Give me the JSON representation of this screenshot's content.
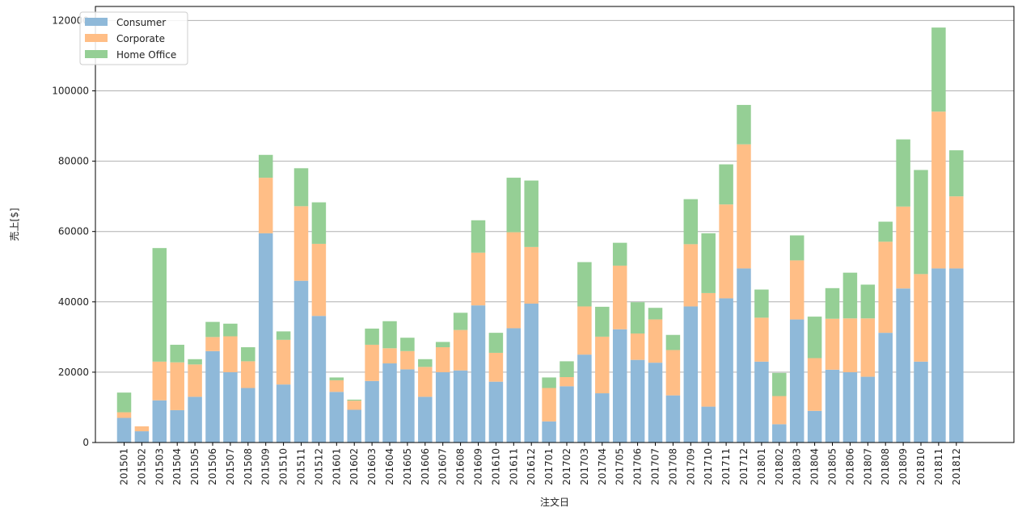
{
  "chart_data": {
    "type": "bar",
    "stacked": true,
    "xlabel": "注文日",
    "ylabel": "売上[$]",
    "ylim": [
      0,
      124000
    ],
    "yticks": [
      0,
      20000,
      40000,
      60000,
      80000,
      100000,
      120000
    ],
    "grid": "y",
    "legend_position": "top-left",
    "categories": [
      "201501",
      "201502",
      "201503",
      "201504",
      "201505",
      "201506",
      "201507",
      "201508",
      "201509",
      "201510",
      "201511",
      "201512",
      "201601",
      "201602",
      "201603",
      "201604",
      "201605",
      "201606",
      "201607",
      "201608",
      "201609",
      "201610",
      "201611",
      "201612",
      "201701",
      "201702",
      "201703",
      "201704",
      "201705",
      "201706",
      "201707",
      "201708",
      "201709",
      "201710",
      "201711",
      "201712",
      "201801",
      "201802",
      "201803",
      "201804",
      "201805",
      "201806",
      "201807",
      "201808",
      "201809",
      "201810",
      "201811",
      "201812"
    ],
    "series": [
      {
        "name": "Consumer",
        "color": "#8fb9d9",
        "values": [
          7000,
          3200,
          12000,
          9200,
          13000,
          26000,
          20000,
          15500,
          59500,
          16500,
          46000,
          36000,
          14400,
          9300,
          17500,
          22500,
          20800,
          13000,
          20000,
          20500,
          39000,
          17300,
          32500,
          39500,
          6000,
          16000,
          25000,
          14000,
          32200,
          23500,
          22700,
          13400,
          38700,
          10200,
          41000,
          49500,
          23000,
          5200,
          35000,
          9000,
          20700,
          20000,
          18700,
          31200,
          43800,
          23000,
          49500,
          49500
        ]
      },
      {
        "name": "Corporate",
        "color": "#ffbe86",
        "values": [
          1600,
          1400,
          11000,
          13600,
          9200,
          4000,
          10200,
          7600,
          15800,
          12700,
          21200,
          20500,
          3300,
          2600,
          10300,
          4300,
          5200,
          8500,
          7100,
          11500,
          15000,
          8200,
          27300,
          16100,
          9500,
          2600,
          13700,
          16100,
          18100,
          7500,
          12300,
          12900,
          17700,
          32300,
          26700,
          35300,
          12500,
          8000,
          16800,
          15000,
          14500,
          15300,
          16600,
          25900,
          23300,
          24900,
          44600,
          20500
        ]
      },
      {
        "name": "Home Office",
        "color": "#95cf95",
        "values": [
          5600,
          0,
          32300,
          5000,
          1500,
          4300,
          3600,
          4000,
          6500,
          2400,
          10800,
          11800,
          800,
          300,
          4600,
          7700,
          3800,
          2200,
          1500,
          4900,
          9200,
          5700,
          15500,
          18900,
          3000,
          4500,
          12600,
          8500,
          6500,
          8900,
          3300,
          4300,
          12800,
          17000,
          11400,
          11200,
          8000,
          6600,
          7100,
          11800,
          8700,
          13000,
          9600,
          5700,
          19100,
          29600,
          23900,
          13100
        ]
      }
    ]
  }
}
